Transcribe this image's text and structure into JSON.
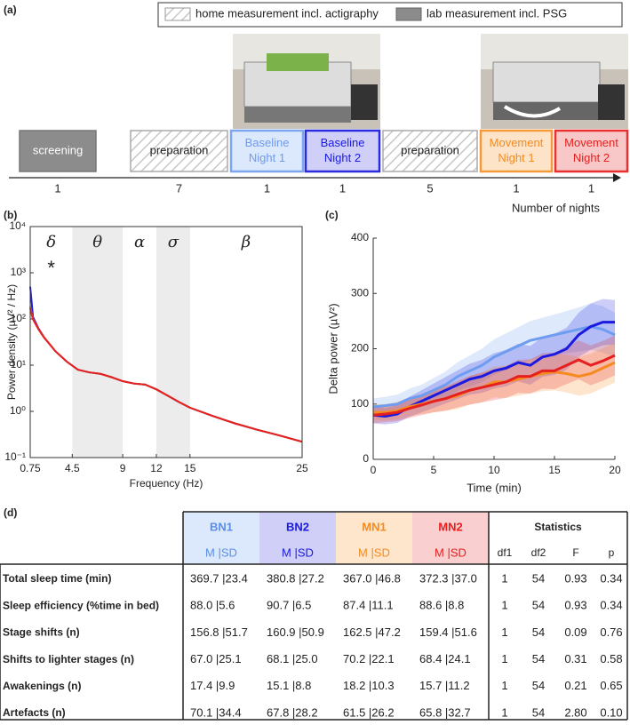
{
  "panel_a": {
    "label": "(a)",
    "legend": [
      "home measurement incl. actigraphy",
      "lab measurement incl. PSG"
    ],
    "steps": [
      {
        "text": "screening",
        "nights": 1
      },
      {
        "text": "preparation",
        "nights": 7
      },
      {
        "text": "Baseline Night 1",
        "nights": 1
      },
      {
        "text": "Baseline Night 2",
        "nights": 1
      },
      {
        "text": "preparation",
        "nights": 5
      },
      {
        "text": "Movement Night 1",
        "nights": 1
      },
      {
        "text": "Movement Night 2",
        "nights": 1
      }
    ],
    "axis_label": "Number of nights"
  },
  "chart_data": [
    {
      "type": "line",
      "panel": "(b)",
      "log_y": true,
      "xlabel": "Frequency (Hz)",
      "ylabel": "Power density (µV² / Hz)",
      "xlim": [
        0.75,
        25
      ],
      "xticks": [
        0.75,
        4.5,
        9,
        12,
        15,
        25
      ],
      "ylim": [
        0.1,
        10000
      ],
      "yticks": [
        {
          "value": 0.1,
          "label": "10⁻¹"
        },
        {
          "value": 1,
          "label": "10⁰"
        },
        {
          "value": 10,
          "label": "10¹"
        },
        {
          "value": 100,
          "label": "10²"
        },
        {
          "value": 1000,
          "label": "10³"
        },
        {
          "value": 10000,
          "label": "10⁴"
        }
      ],
      "bands": [
        {
          "label": "δ",
          "range": [
            0.75,
            4.5
          ],
          "shaded": false
        },
        {
          "label": "θ",
          "range": [
            4.5,
            9
          ],
          "shaded": true
        },
        {
          "label": "α",
          "range": [
            9,
            12
          ],
          "shaded": false
        },
        {
          "label": "σ",
          "range": [
            12,
            15
          ],
          "shaded": true
        },
        {
          "label": "β",
          "range": [
            15,
            25
          ],
          "shaded": false
        }
      ],
      "annotation": "*",
      "x": [
        0.75,
        1,
        1.5,
        2,
        3,
        4,
        5,
        6,
        7,
        8,
        9,
        10,
        11,
        12,
        13,
        14,
        15,
        17,
        19,
        21,
        23,
        25
      ],
      "series": [
        {
          "color": "#6e9cf0",
          "values": [
            190,
            100,
            60,
            40,
            20,
            12,
            8,
            7,
            6.5,
            5.5,
            4.5,
            4,
            3.8,
            3,
            2.2,
            1.6,
            1.2,
            0.8,
            0.55,
            0.4,
            0.3,
            0.22
          ]
        },
        {
          "color": "#1a1ae0",
          "values": [
            500,
            110,
            62,
            40,
            20,
            12,
            8,
            7,
            6.5,
            5.5,
            4.5,
            4,
            3.8,
            3,
            2.2,
            1.6,
            1.2,
            0.8,
            0.55,
            0.4,
            0.3,
            0.22
          ]
        },
        {
          "color": "#f58a1f",
          "values": [
            180,
            100,
            60,
            40,
            20,
            12,
            8,
            7,
            6.5,
            5.5,
            4.5,
            4,
            3.8,
            3,
            2.2,
            1.6,
            1.2,
            0.8,
            0.55,
            0.4,
            0.3,
            0.22
          ]
        },
        {
          "color": "#e62020",
          "values": [
            170,
            98,
            59,
            39,
            20,
            12,
            8,
            7,
            6.5,
            5.5,
            4.5,
            4,
            3.8,
            3,
            2.2,
            1.6,
            1.2,
            0.8,
            0.55,
            0.4,
            0.3,
            0.22
          ]
        }
      ]
    },
    {
      "type": "line",
      "panel": "(c)",
      "log_y": false,
      "xlabel": "Time (min)",
      "ylabel": "Delta power (µV²)",
      "xlim": [
        0,
        20
      ],
      "xticks": [
        0,
        5,
        10,
        15,
        20
      ],
      "ylim": [
        0,
        400
      ],
      "yticks": [
        0,
        100,
        200,
        300,
        400
      ],
      "x": [
        0,
        1,
        2,
        3,
        4,
        5,
        6,
        7,
        8,
        9,
        10,
        11,
        12,
        13,
        14,
        15,
        16,
        17,
        18,
        19,
        20
      ],
      "series": [
        {
          "color": "#6e9cf0",
          "values": [
            95,
            97,
            100,
            110,
            115,
            125,
            135,
            150,
            160,
            170,
            185,
            195,
            205,
            215,
            220,
            225,
            230,
            235,
            240,
            235,
            225
          ],
          "errors": [
            15,
            16,
            17,
            18,
            20,
            22,
            24,
            26,
            28,
            30,
            32,
            33,
            34,
            35,
            36,
            37,
            38,
            40,
            42,
            42,
            40
          ]
        },
        {
          "color": "#1a1ae0",
          "values": [
            80,
            78,
            82,
            95,
            105,
            115,
            125,
            135,
            145,
            150,
            160,
            165,
            175,
            170,
            185,
            190,
            200,
            225,
            240,
            248,
            248
          ],
          "errors": [
            15,
            15,
            16,
            18,
            20,
            22,
            24,
            26,
            28,
            30,
            32,
            33,
            34,
            35,
            36,
            37,
            38,
            40,
            42,
            42,
            40
          ]
        },
        {
          "color": "#f58a1f",
          "values": [
            85,
            85,
            88,
            95,
            100,
            105,
            110,
            115,
            125,
            130,
            140,
            140,
            145,
            150,
            155,
            158,
            155,
            150,
            155,
            165,
            175
          ],
          "errors": [
            15,
            15,
            16,
            17,
            18,
            20,
            22,
            24,
            26,
            27,
            28,
            29,
            30,
            31,
            32,
            33,
            34,
            35,
            36,
            36,
            36
          ]
        },
        {
          "color": "#e62020",
          "values": [
            80,
            82,
            85,
            92,
            98,
            105,
            110,
            118,
            125,
            130,
            135,
            140,
            150,
            150,
            160,
            160,
            170,
            180,
            170,
            178,
            188
          ],
          "errors": [
            15,
            15,
            16,
            17,
            18,
            20,
            22,
            24,
            26,
            27,
            28,
            29,
            30,
            31,
            32,
            33,
            34,
            35,
            36,
            36,
            36
          ]
        }
      ]
    }
  ],
  "table": {
    "label": "(d)",
    "groups": [
      {
        "name": "BN1",
        "color": "#5b8fe8",
        "bg": "#dce8fb"
      },
      {
        "name": "BN2",
        "color": "#1a1ae0",
        "bg": "#cfcff7"
      },
      {
        "name": "MN1",
        "color": "#f58a1f",
        "bg": "#fde6cc"
      },
      {
        "name": "MN2",
        "color": "#e62020",
        "bg": "#f9cfcf"
      }
    ],
    "subheaders": [
      "M |SD",
      "M |SD",
      "M |SD",
      "M |SD"
    ],
    "stats_title": "Statistics",
    "stats_headers": [
      "df1",
      "df2",
      "F",
      "p"
    ],
    "rows": [
      [
        "Total sleep time (min)",
        "369.7 |23.4",
        "380.8 |27.2",
        "367.0 |46.8",
        "372.3 |37.0",
        "1",
        "54",
        "0.93",
        "0.34"
      ],
      [
        "Sleep efficiency (%time in bed)",
        "88.0 |5.6",
        "90.7 |6.5",
        "87.4 |11.1",
        "88.6 |8.8",
        "1",
        "54",
        "0.93",
        "0.34"
      ],
      [
        "Stage shifts (n)",
        "156.8 |51.7",
        "160.9 |50.9",
        "162.5 |47.2",
        "159.4 |51.6",
        "1",
        "54",
        "0.09",
        "0.76"
      ],
      [
        "Shifts to lighter stages (n)",
        "67.0 |25.1",
        "68.1 |25.0",
        "70.2 |22.1",
        "68.4 |24.1",
        "1",
        "54",
        "0.31",
        "0.58"
      ],
      [
        "Awakenings (n)",
        "17.4 |9.9",
        "15.1 |8.8",
        "18.2 |10.3",
        "15.7 |11.2",
        "1",
        "54",
        "0.21",
        "0.65"
      ],
      [
        "Artefacts (n)",
        "70.1 |34.4",
        "67.8 |28.2",
        "61.5 |26.2",
        "65.8 |32.7",
        "1",
        "54",
        "2.80",
        "0.10"
      ]
    ]
  }
}
